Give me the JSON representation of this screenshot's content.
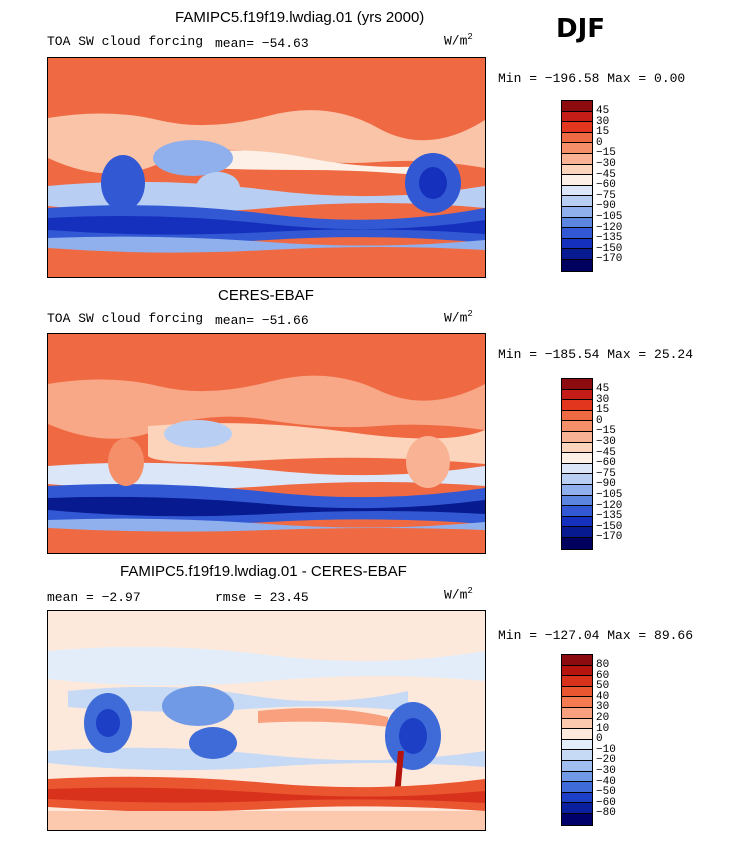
{
  "season": "DJF",
  "units": "W/m",
  "units_exp": "2",
  "panels": [
    {
      "title": "FAMIPC5.f19f19.lwdiag.01 (yrs 2000)",
      "var_label": "TOA SW cloud forcing",
      "mean_label": "mean= -54.63",
      "minmax": "Min = -196.58  Max =   0.00",
      "levels": [
        "45",
        "30",
        "15",
        "0",
        "-15",
        "-30",
        "-45",
        "-60",
        "-75",
        "-90",
        "-105",
        "-120",
        "-135",
        "-150",
        "-170"
      ],
      "colors": [
        "#8b0b0f",
        "#c41c16",
        "#e2361f",
        "#ef6a43",
        "#f58f6a",
        "#f9b293",
        "#fcd3bb",
        "#fdf0e6",
        "#dbe7f8",
        "#b8cff3",
        "#8fb0ec",
        "#5c85e0",
        "#3259d3",
        "#1530bd",
        "#071a8f",
        "#00005e"
      ]
    },
    {
      "title": "CERES-EBAF",
      "var_label": "TOA SW cloud forcing",
      "mean_label": "mean= -51.66",
      "minmax": "Min = -185.54  Max =  25.24",
      "levels": [
        "45",
        "30",
        "15",
        "0",
        "-15",
        "-30",
        "-45",
        "-60",
        "-75",
        "-90",
        "-105",
        "-120",
        "-135",
        "-150",
        "-170"
      ],
      "colors": [
        "#8b0b0f",
        "#c41c16",
        "#e2361f",
        "#ef6a43",
        "#f58f6a",
        "#f9b293",
        "#fcd3bb",
        "#fdf0e6",
        "#dbe7f8",
        "#b8cff3",
        "#8fb0ec",
        "#5c85e0",
        "#3259d3",
        "#1530bd",
        "#071a8f",
        "#00005e"
      ]
    },
    {
      "title": "FAMIPC5.f19f19.lwdiag.01 - CERES-EBAF",
      "mean_label": "mean =   -2.97",
      "rmse_label": "rmse =   23.45",
      "minmax": "Min = -127.04  Max =  89.66",
      "levels": [
        "80",
        "60",
        "50",
        "40",
        "30",
        "20",
        "10",
        "0",
        "-10",
        "-20",
        "-30",
        "-40",
        "-50",
        "-60",
        "-80"
      ],
      "colors": [
        "#8b0b0f",
        "#b5140f",
        "#d8311c",
        "#ea5630",
        "#f47a52",
        "#f9a07f",
        "#fcc8ae",
        "#fde9dc",
        "#e3edf9",
        "#c6d9f5",
        "#9fbdef",
        "#7099e6",
        "#3f6bd8",
        "#1c3fc6",
        "#0a1f9e",
        "#00006b"
      ]
    }
  ]
}
